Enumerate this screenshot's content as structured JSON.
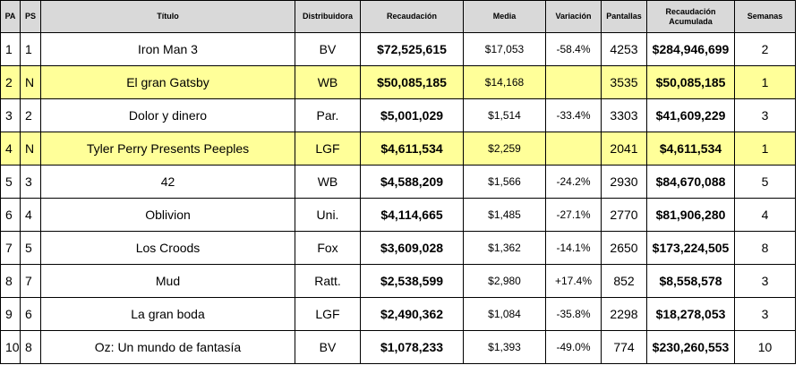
{
  "headers": {
    "pa": "PA",
    "ps": "PS",
    "title": "Título",
    "distributor": "Distribuidora",
    "gross": "Recaudación",
    "average": "Media",
    "change": "Variación",
    "screens": "Pantallas",
    "cumulative_line1": "Recaudación",
    "cumulative_line2": "Acumulada",
    "weeks": "Semanas"
  },
  "rows": [
    {
      "pa": "1",
      "ps": "1",
      "title": "Iron Man 3",
      "distributor": "BV",
      "gross": "$72,525,615",
      "average": "$17,053",
      "change": "-58.4%",
      "screens": "4253",
      "cumulative": "$284,946,699",
      "weeks": "2",
      "highlight": false
    },
    {
      "pa": "2",
      "ps": "N",
      "title": "El gran Gatsby",
      "distributor": "WB",
      "gross": "$50,085,185",
      "average": "$14,168",
      "change": "",
      "screens": "3535",
      "cumulative": "$50,085,185",
      "weeks": "1",
      "highlight": true
    },
    {
      "pa": "3",
      "ps": "2",
      "title": "Dolor y dinero",
      "distributor": "Par.",
      "gross": "$5,001,029",
      "average": "$1,514",
      "change": "-33.4%",
      "screens": "3303",
      "cumulative": "$41,609,229",
      "weeks": "3",
      "highlight": false
    },
    {
      "pa": "4",
      "ps": "N",
      "title": "Tyler Perry Presents Peeples",
      "distributor": "LGF",
      "gross": "$4,611,534",
      "average": "$2,259",
      "change": "",
      "screens": "2041",
      "cumulative": "$4,611,534",
      "weeks": "1",
      "highlight": true
    },
    {
      "pa": "5",
      "ps": "3",
      "title": "42",
      "distributor": "WB",
      "gross": "$4,588,209",
      "average": "$1,566",
      "change": "-24.2%",
      "screens": "2930",
      "cumulative": "$84,670,088",
      "weeks": "5",
      "highlight": false
    },
    {
      "pa": "6",
      "ps": "4",
      "title": "Oblivion",
      "distributor": "Uni.",
      "gross": "$4,114,665",
      "average": "$1,485",
      "change": "-27.1%",
      "screens": "2770",
      "cumulative": "$81,906,280",
      "weeks": "4",
      "highlight": false
    },
    {
      "pa": "7",
      "ps": "5",
      "title": "Los Croods",
      "distributor": "Fox",
      "gross": "$3,609,028",
      "average": "$1,362",
      "change": "-14.1%",
      "screens": "2650",
      "cumulative": "$173,224,505",
      "weeks": "8",
      "highlight": false
    },
    {
      "pa": "8",
      "ps": "7",
      "title": "Mud",
      "distributor": "Ratt.",
      "gross": "$2,538,599",
      "average": "$2,980",
      "change": "+17.4%",
      "screens": "852",
      "cumulative": "$8,558,578",
      "weeks": "3",
      "highlight": false
    },
    {
      "pa": "9",
      "ps": "6",
      "title": "La gran boda",
      "distributor": "LGF",
      "gross": "$2,490,362",
      "average": "$1,084",
      "change": "-35.8%",
      "screens": "2298",
      "cumulative": "$18,278,053",
      "weeks": "3",
      "highlight": false
    },
    {
      "pa": "10",
      "ps": "8",
      "title": "Oz: Un mundo de fantasía",
      "distributor": "BV",
      "gross": "$1,078,233",
      "average": "$1,393",
      "change": "-49.0%",
      "screens": "774",
      "cumulative": "$230,260,553",
      "weeks": "10",
      "highlight": false
    }
  ],
  "colors": {
    "header_bg": "#d9d9d9",
    "highlight_bg": "#ffff99",
    "border": "#000000"
  }
}
